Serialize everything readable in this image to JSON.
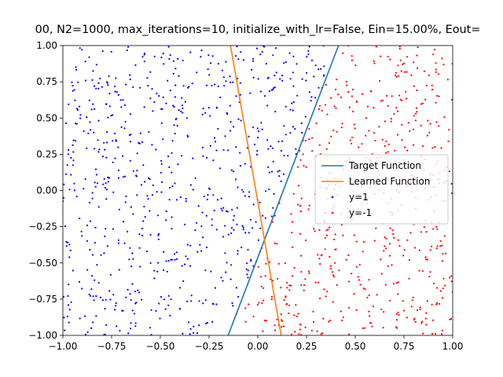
{
  "chart_data": {
    "type": "scatter",
    "title": "00, N2=1000, max_iterations=10, initialize_with_lr=False, Ein=15.00%, Eout=",
    "xlim": [
      -1.0,
      1.0
    ],
    "ylim": [
      -1.0,
      1.0
    ],
    "xticks": [
      "−1.00",
      "−0.75",
      "−0.50",
      "−0.25",
      "0.00",
      "0.25",
      "0.50",
      "0.75",
      "1.00"
    ],
    "yticks": [
      "−1.00",
      "−0.75",
      "−0.50",
      "−0.25",
      "0.00",
      "0.25",
      "0.50",
      "0.75",
      "1.00"
    ],
    "grid": false,
    "legend_position": "center-right",
    "lines": [
      {
        "name": "Target Function",
        "color": "#1f77b4",
        "x": [
          -0.152,
          0.414
        ],
        "y": [
          -1.0,
          1.0
        ]
      },
      {
        "name": "Learned Function",
        "color": "#ff7f0e",
        "x": [
          -0.14,
          0.12
        ],
        "y": [
          1.0,
          -1.0
        ]
      }
    ],
    "scatter_series": [
      {
        "name": "y=1",
        "color": "#0000ff",
        "side": "left",
        "count": 700
      },
      {
        "name": "y=-1",
        "color": "#ff0000",
        "side": "right",
        "count": 560
      }
    ]
  }
}
